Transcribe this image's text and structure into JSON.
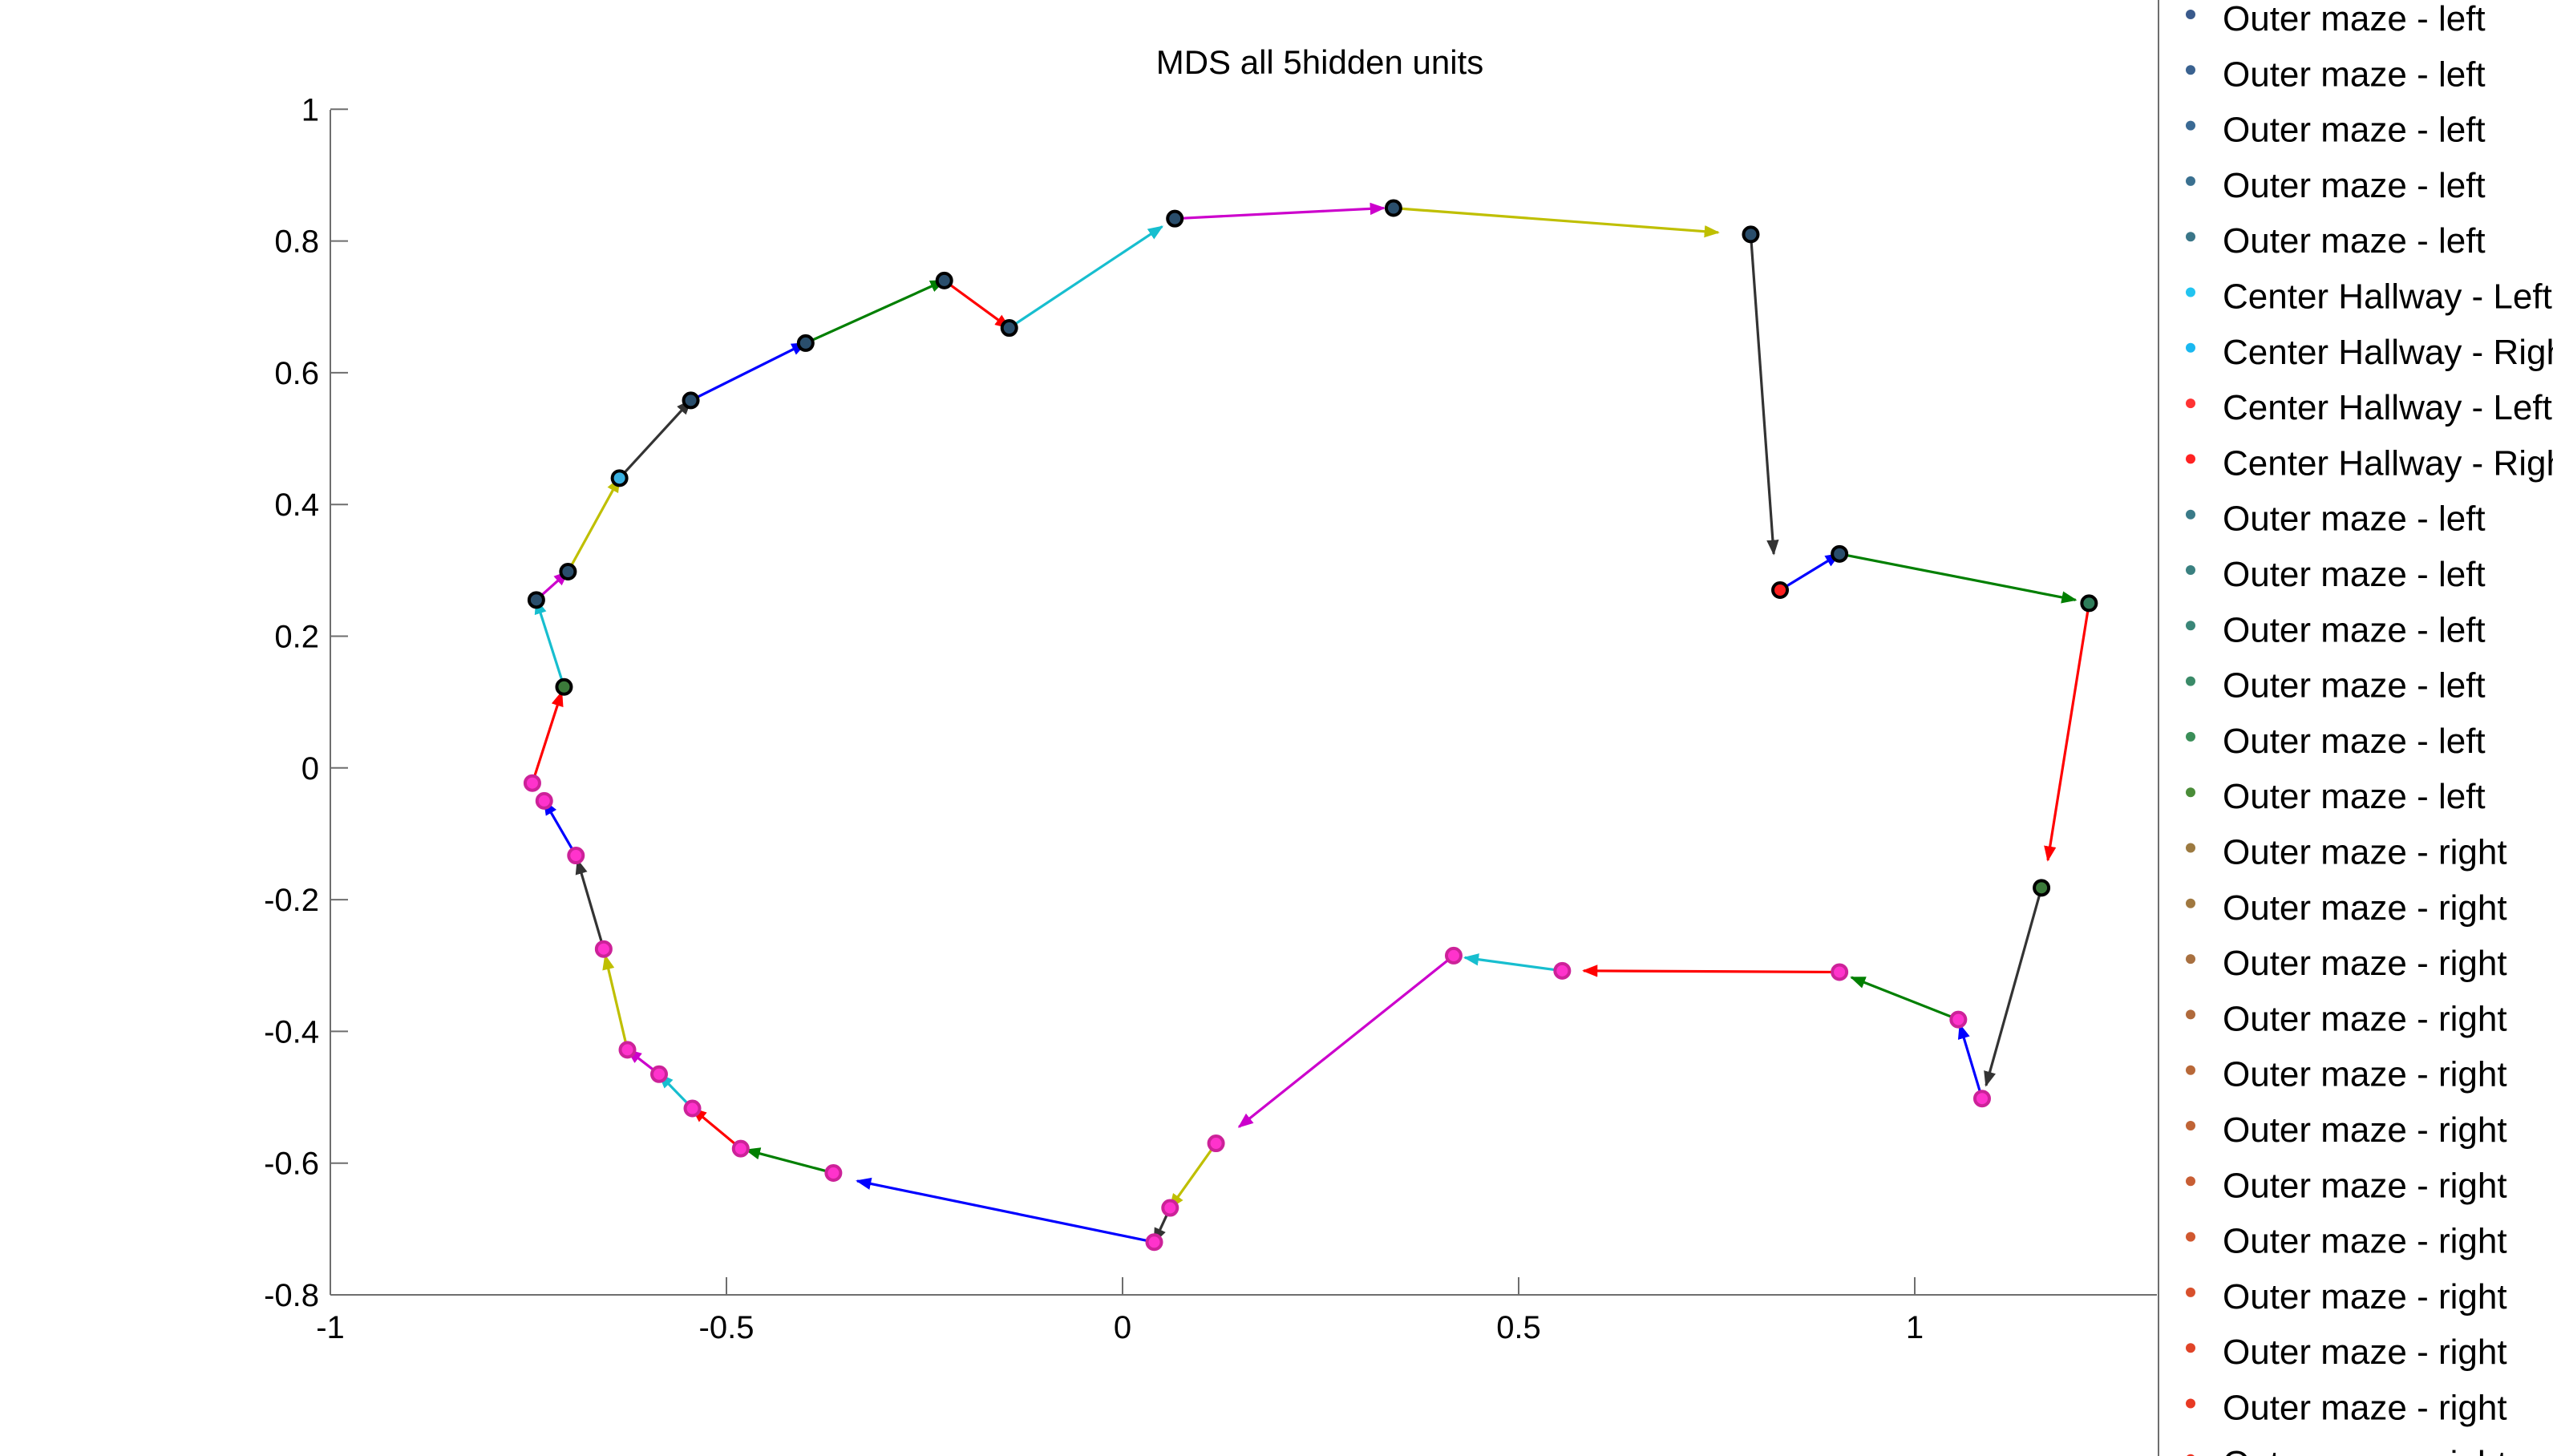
{
  "chart_data": {
    "type": "scatter",
    "title": "MDS all 5hidden units",
    "xlabel": "",
    "ylabel": "",
    "xlim": [
      -1,
      1.3
    ],
    "ylim": [
      -0.8,
      1
    ],
    "xticks": [
      -1,
      -0.5,
      0,
      0.5,
      1
    ],
    "xtick_labels": [
      "-1",
      "-0.5",
      "0",
      "0.5",
      "1"
    ],
    "yticks": [
      -0.8,
      -0.6,
      -0.4,
      -0.2,
      0,
      0.2,
      0.4,
      0.6,
      0.8,
      1
    ],
    "ytick_labels": [
      "-0.8",
      "-0.6",
      "-0.4",
      "-0.2",
      "0",
      "0.2",
      "0.4",
      "0.6",
      "0.8",
      "1"
    ],
    "grid": false,
    "legend_placement": "right",
    "points": [
      {
        "x": -0.74,
        "y": 0.255,
        "color": "#2a4e6c"
      },
      {
        "x": -0.7,
        "y": 0.298,
        "color": "#2a4e6c"
      },
      {
        "x": -0.635,
        "y": 0.44,
        "color": "#3ab0e0"
      },
      {
        "x": -0.545,
        "y": 0.558,
        "color": "#2a4e6c"
      },
      {
        "x": -0.4,
        "y": 0.645,
        "color": "#2a4e6c"
      },
      {
        "x": -0.225,
        "y": 0.74,
        "color": "#2a4e6c"
      },
      {
        "x": -0.143,
        "y": 0.668,
        "color": "#2a4e6c"
      },
      {
        "x": 0.066,
        "y": 0.834,
        "color": "#2a4e6c"
      },
      {
        "x": 0.342,
        "y": 0.85,
        "color": "#2a4e6c"
      },
      {
        "x": 0.793,
        "y": 0.81,
        "color": "#2a4e6c"
      },
      {
        "x": 0.83,
        "y": 0.27,
        "color": "#ff2020"
      },
      {
        "x": 0.905,
        "y": 0.325,
        "color": "#2a4e6c"
      },
      {
        "x": 1.22,
        "y": 0.25,
        "color": "#2e7d5a"
      },
      {
        "x": 1.16,
        "y": -0.182,
        "color": "#3b7a3a"
      },
      {
        "x": 1.085,
        "y": -0.502,
        "color": "#ff33cc"
      },
      {
        "x": 1.055,
        "y": -0.382,
        "color": "#ff33cc"
      },
      {
        "x": 0.905,
        "y": -0.31,
        "color": "#ff33cc"
      },
      {
        "x": 0.555,
        "y": -0.308,
        "color": "#ff33cc"
      },
      {
        "x": 0.418,
        "y": -0.285,
        "color": "#ff33cc"
      },
      {
        "x": 0.118,
        "y": -0.57,
        "color": "#ff33cc"
      },
      {
        "x": 0.06,
        "y": -0.668,
        "color": "#ff33cc"
      },
      {
        "x": 0.04,
        "y": -0.72,
        "color": "#ff33cc"
      },
      {
        "x": -0.365,
        "y": -0.615,
        "color": "#ff33cc"
      },
      {
        "x": -0.482,
        "y": -0.578,
        "color": "#ff33cc"
      },
      {
        "x": -0.543,
        "y": -0.517,
        "color": "#ff33cc"
      },
      {
        "x": -0.585,
        "y": -0.465,
        "color": "#ff33cc"
      },
      {
        "x": -0.625,
        "y": -0.428,
        "color": "#ff33cc"
      },
      {
        "x": -0.655,
        "y": -0.275,
        "color": "#ff33cc"
      },
      {
        "x": -0.69,
        "y": -0.133,
        "color": "#ff33cc"
      },
      {
        "x": -0.73,
        "y": -0.05,
        "color": "#ff33cc"
      },
      {
        "x": -0.745,
        "y": -0.023,
        "color": "#ff33cc"
      },
      {
        "x": -0.705,
        "y": 0.123,
        "color": "#3b7a3a"
      }
    ],
    "arrows": [
      {
        "from": [
          -0.705,
          0.123
        ],
        "to": [
          -0.74,
          0.255
        ],
        "color": "#17becf"
      },
      {
        "from": [
          -0.74,
          0.255
        ],
        "to": [
          -0.7,
          0.298
        ],
        "color": "#cc00cc"
      },
      {
        "from": [
          -0.7,
          0.298
        ],
        "to": [
          -0.635,
          0.44
        ],
        "color": "#bfbf00"
      },
      {
        "from": [
          -0.635,
          0.44
        ],
        "to": [
          -0.545,
          0.558
        ],
        "color": "#333333"
      },
      {
        "from": [
          -0.545,
          0.558
        ],
        "to": [
          -0.4,
          0.645
        ],
        "color": "#0000ff"
      },
      {
        "from": [
          -0.4,
          0.645
        ],
        "to": [
          -0.225,
          0.74
        ],
        "color": "#007f00"
      },
      {
        "from": [
          -0.225,
          0.74
        ],
        "to": [
          -0.143,
          0.668
        ],
        "color": "#ff0000"
      },
      {
        "from": [
          -0.143,
          0.668
        ],
        "to": [
          0.05,
          0.822
        ],
        "color": "#17becf"
      },
      {
        "from": [
          0.066,
          0.834
        ],
        "to": [
          0.33,
          0.85
        ],
        "color": "#cc00cc"
      },
      {
        "from": [
          0.342,
          0.85
        ],
        "to": [
          0.752,
          0.813
        ],
        "color": "#bfbf00"
      },
      {
        "from": [
          0.793,
          0.81
        ],
        "to": [
          0.822,
          0.325
        ],
        "color": "#333333"
      },
      {
        "from": [
          0.83,
          0.27
        ],
        "to": [
          0.905,
          0.325
        ],
        "color": "#0000ff"
      },
      {
        "from": [
          0.905,
          0.325
        ],
        "to": [
          1.203,
          0.255
        ],
        "color": "#007f00"
      },
      {
        "from": [
          1.22,
          0.25
        ],
        "to": [
          1.168,
          -0.14
        ],
        "color": "#ff0000"
      },
      {
        "from": [
          1.16,
          -0.182
        ],
        "to": [
          1.09,
          -0.482
        ],
        "color": "#333333"
      },
      {
        "from": [
          1.085,
          -0.502
        ],
        "to": [
          1.057,
          -0.39
        ],
        "color": "#0000ff"
      },
      {
        "from": [
          1.055,
          -0.382
        ],
        "to": [
          0.92,
          -0.318
        ],
        "color": "#007f00"
      },
      {
        "from": [
          0.905,
          -0.31
        ],
        "to": [
          0.582,
          -0.308
        ],
        "color": "#ff0000"
      },
      {
        "from": [
          0.555,
          -0.308
        ],
        "to": [
          0.432,
          -0.288
        ],
        "color": "#17becf"
      },
      {
        "from": [
          0.418,
          -0.285
        ],
        "to": [
          0.147,
          -0.545
        ],
        "color": "#cc00cc"
      },
      {
        "from": [
          0.118,
          -0.57
        ],
        "to": [
          0.06,
          -0.668
        ],
        "color": "#bfbf00"
      },
      {
        "from": [
          0.06,
          -0.668
        ],
        "to": [
          0.04,
          -0.72
        ],
        "color": "#333333"
      },
      {
        "from": [
          0.04,
          -0.72
        ],
        "to": [
          -0.335,
          -0.627
        ],
        "color": "#0000ff"
      },
      {
        "from": [
          -0.365,
          -0.615
        ],
        "to": [
          -0.475,
          -0.58
        ],
        "color": "#007f00"
      },
      {
        "from": [
          -0.482,
          -0.578
        ],
        "to": [
          -0.543,
          -0.517
        ],
        "color": "#ff0000"
      },
      {
        "from": [
          -0.543,
          -0.517
        ],
        "to": [
          -0.585,
          -0.465
        ],
        "color": "#17becf"
      },
      {
        "from": [
          -0.585,
          -0.465
        ],
        "to": [
          -0.625,
          -0.428
        ],
        "color": "#cc00cc"
      },
      {
        "from": [
          -0.625,
          -0.428
        ],
        "to": [
          -0.653,
          -0.285
        ],
        "color": "#bfbf00"
      },
      {
        "from": [
          -0.655,
          -0.275
        ],
        "to": [
          -0.688,
          -0.14
        ],
        "color": "#333333"
      },
      {
        "from": [
          -0.69,
          -0.133
        ],
        "to": [
          -0.73,
          -0.05
        ],
        "color": "#0000ff"
      },
      {
        "from": [
          -0.745,
          -0.023
        ],
        "to": [
          -0.708,
          0.115
        ],
        "color": "#ff0000"
      }
    ],
    "legend": [
      {
        "label": "Outer maze - left",
        "color": "#3a5a8c"
      },
      {
        "label": "Outer maze - left",
        "color": "#3a6290"
      },
      {
        "label": "Outer maze - left",
        "color": "#3a6a94"
      },
      {
        "label": "Outer maze - left",
        "color": "#3a7090"
      },
      {
        "label": "Outer maze - left",
        "color": "#3a7688"
      },
      {
        "label": "Center Hallway - Left",
        "color": "#22c4f0"
      },
      {
        "label": "Center Hallway - Right",
        "color": "#1ab8f0"
      },
      {
        "label": "Center Hallway - Left",
        "color": "#ff3333"
      },
      {
        "label": "Center Hallway - Right",
        "color": "#ff2222"
      },
      {
        "label": "Outer maze - left",
        "color": "#3a7a88"
      },
      {
        "label": "Outer maze - left",
        "color": "#3a8080"
      },
      {
        "label": "Outer maze - left",
        "color": "#3a8678"
      },
      {
        "label": "Outer maze - left",
        "color": "#3a8a68"
      },
      {
        "label": "Outer maze - left",
        "color": "#3a8e58"
      },
      {
        "label": "Outer maze - left",
        "color": "#4a8c38"
      },
      {
        "label": "Outer maze - right",
        "color": "#9c7a40"
      },
      {
        "label": "Outer maze - right",
        "color": "#a07840"
      },
      {
        "label": "Outer maze - right",
        "color": "#a87040"
      },
      {
        "label": "Outer maze - right",
        "color": "#b06a3c"
      },
      {
        "label": "Outer maze - right",
        "color": "#b86838"
      },
      {
        "label": "Outer maze - right",
        "color": "#c06436"
      },
      {
        "label": "Outer maze - right",
        "color": "#c85e34"
      },
      {
        "label": "Outer maze - right",
        "color": "#d05830"
      },
      {
        "label": "Outer maze - right",
        "color": "#d8502c"
      },
      {
        "label": "Outer maze - right",
        "color": "#e04428"
      },
      {
        "label": "Outer maze - right",
        "color": "#e83a24"
      },
      {
        "label": "Outer maze - right",
        "color": "#ee3220"
      }
    ]
  }
}
